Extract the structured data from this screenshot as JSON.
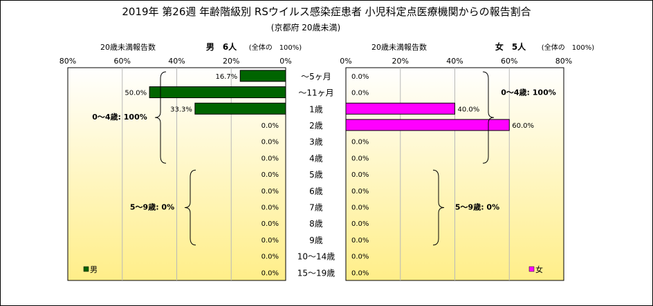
{
  "chart_data": [
    {
      "type": "bar",
      "orientation": "horizontal",
      "title": "2019年 第26週 年齢階級別 RSウイルス感染症患者 小児科定点医療機関からの報告割合",
      "subtitle": "(京都府 20歳未満)",
      "side_header": "20歳未満報告数",
      "panel_title": "男　6人",
      "panel_total_note": "(全体の　100%)",
      "legend": "男",
      "color": "#006400",
      "xlim": [
        0,
        80
      ],
      "x_reversed": true,
      "ticks": [
        "80%",
        "60%",
        "40%",
        "20%",
        "0%"
      ],
      "tick_values": [
        80,
        60,
        40,
        20,
        0
      ],
      "categories": [
        "～5ヶ月",
        "～11ヶ月",
        "1歳",
        "2歳",
        "3歳",
        "4歳",
        "5歳",
        "6歳",
        "7歳",
        "8歳",
        "9歳",
        "10～14歳",
        "15～19歳"
      ],
      "values": [
        16.7,
        50.0,
        33.3,
        0,
        0,
        0,
        0,
        0,
        0,
        0,
        0,
        0,
        0
      ],
      "labels": [
        "16.7%",
        "50.0%",
        "33.3%",
        "0.0%",
        "0.0%",
        "0.0%",
        "0.0%",
        "0.0%",
        "0.0%",
        "0.0%",
        "0.0%",
        "0.0%",
        "0.0%"
      ],
      "annotations": [
        {
          "text": "0～4歳: 100%",
          "from": 0,
          "to": 5
        },
        {
          "text": "5～9歳: 0%",
          "from": 6,
          "to": 10
        }
      ]
    },
    {
      "type": "bar",
      "orientation": "horizontal",
      "side_header": "20歳未満報告数",
      "panel_title": "女　5人",
      "panel_total_note": "(全体の　100%)",
      "legend": "女",
      "color": "#ff00ff",
      "xlim": [
        0,
        80
      ],
      "x_reversed": false,
      "ticks": [
        "0%",
        "20%",
        "40%",
        "60%",
        "80%"
      ],
      "tick_values": [
        0,
        20,
        40,
        60,
        80
      ],
      "categories": [
        "～5ヶ月",
        "～11ヶ月",
        "1歳",
        "2歳",
        "3歳",
        "4歳",
        "5歳",
        "6歳",
        "7歳",
        "8歳",
        "9歳",
        "10～14歳",
        "15～19歳"
      ],
      "values": [
        0,
        0,
        40.0,
        60.0,
        0,
        0,
        0,
        0,
        0,
        0,
        0,
        0,
        0
      ],
      "labels": [
        "0.0%",
        "0.0%",
        "40.0%",
        "60.0%",
        "0.0%",
        "0.0%",
        "0.0%",
        "0.0%",
        "0.0%",
        "0.0%",
        "0.0%",
        "0.0%",
        "0.0%"
      ],
      "annotations": [
        {
          "text": "0～4歳: 100%",
          "from": 0,
          "to": 5
        },
        {
          "text": "5～9歳: 0%",
          "from": 6,
          "to": 10
        }
      ]
    }
  ]
}
